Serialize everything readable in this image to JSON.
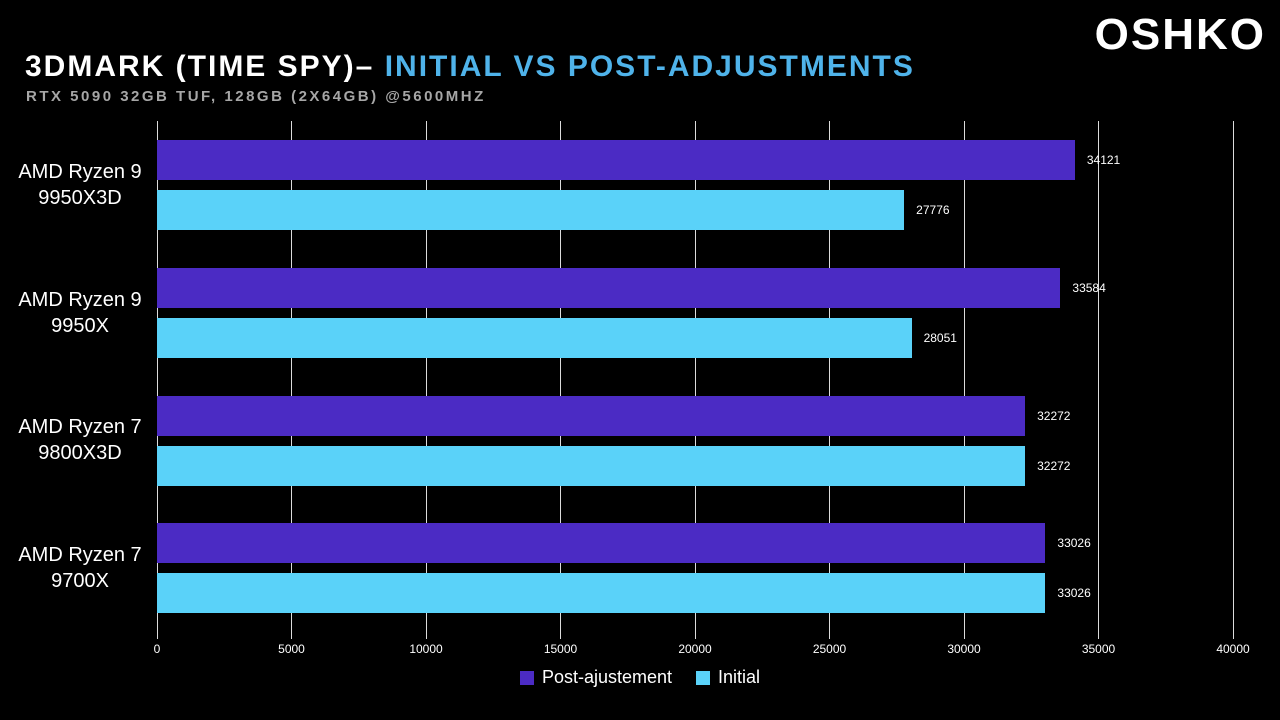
{
  "brand": "OSHKO",
  "header": {
    "title_white": "3DMARK (TIME SPY)– ",
    "title_accent": "INITIAL VS POST-ADJUSTMENTS",
    "subtitle": "RTX 5090 32GB TUF, 128GB (2X64GB) @5600MHZ"
  },
  "colors": {
    "background": "#000000",
    "accent_blue": "#4FB3EA",
    "bar_post": "#4B2BC4",
    "bar_initial": "#5AD2F9",
    "subtitle_gray": "#A6A6A6",
    "gridline": "#DCDCDC",
    "text": "#FFFFFF"
  },
  "chart_data": {
    "type": "bar",
    "orientation": "horizontal",
    "title": "3DMARK (TIME SPY)– INITIAL VS POST-ADJUSTMENTS",
    "subtitle": "RTX 5090 32GB TUF, 128GB (2X64GB) @5600MHZ",
    "categories": [
      "AMD Ryzen 9\n9950X3D",
      "AMD Ryzen 9\n9950X",
      "AMD Ryzen 7\n9800X3D",
      "AMD Ryzen 7\n9700X"
    ],
    "series": [
      {
        "name": "Post-ajustement",
        "color_key": "bar_post",
        "values": [
          34121,
          33584,
          32272,
          33026
        ]
      },
      {
        "name": "Initial",
        "color_key": "bar_initial",
        "values": [
          27776,
          28051,
          32272,
          33026
        ]
      }
    ],
    "xlim": [
      0,
      40000
    ],
    "x_ticks": [
      0,
      5000,
      10000,
      15000,
      20000,
      25000,
      30000,
      35000,
      40000
    ],
    "grid": true,
    "value_labels": true,
    "legend_position": "bottom"
  }
}
